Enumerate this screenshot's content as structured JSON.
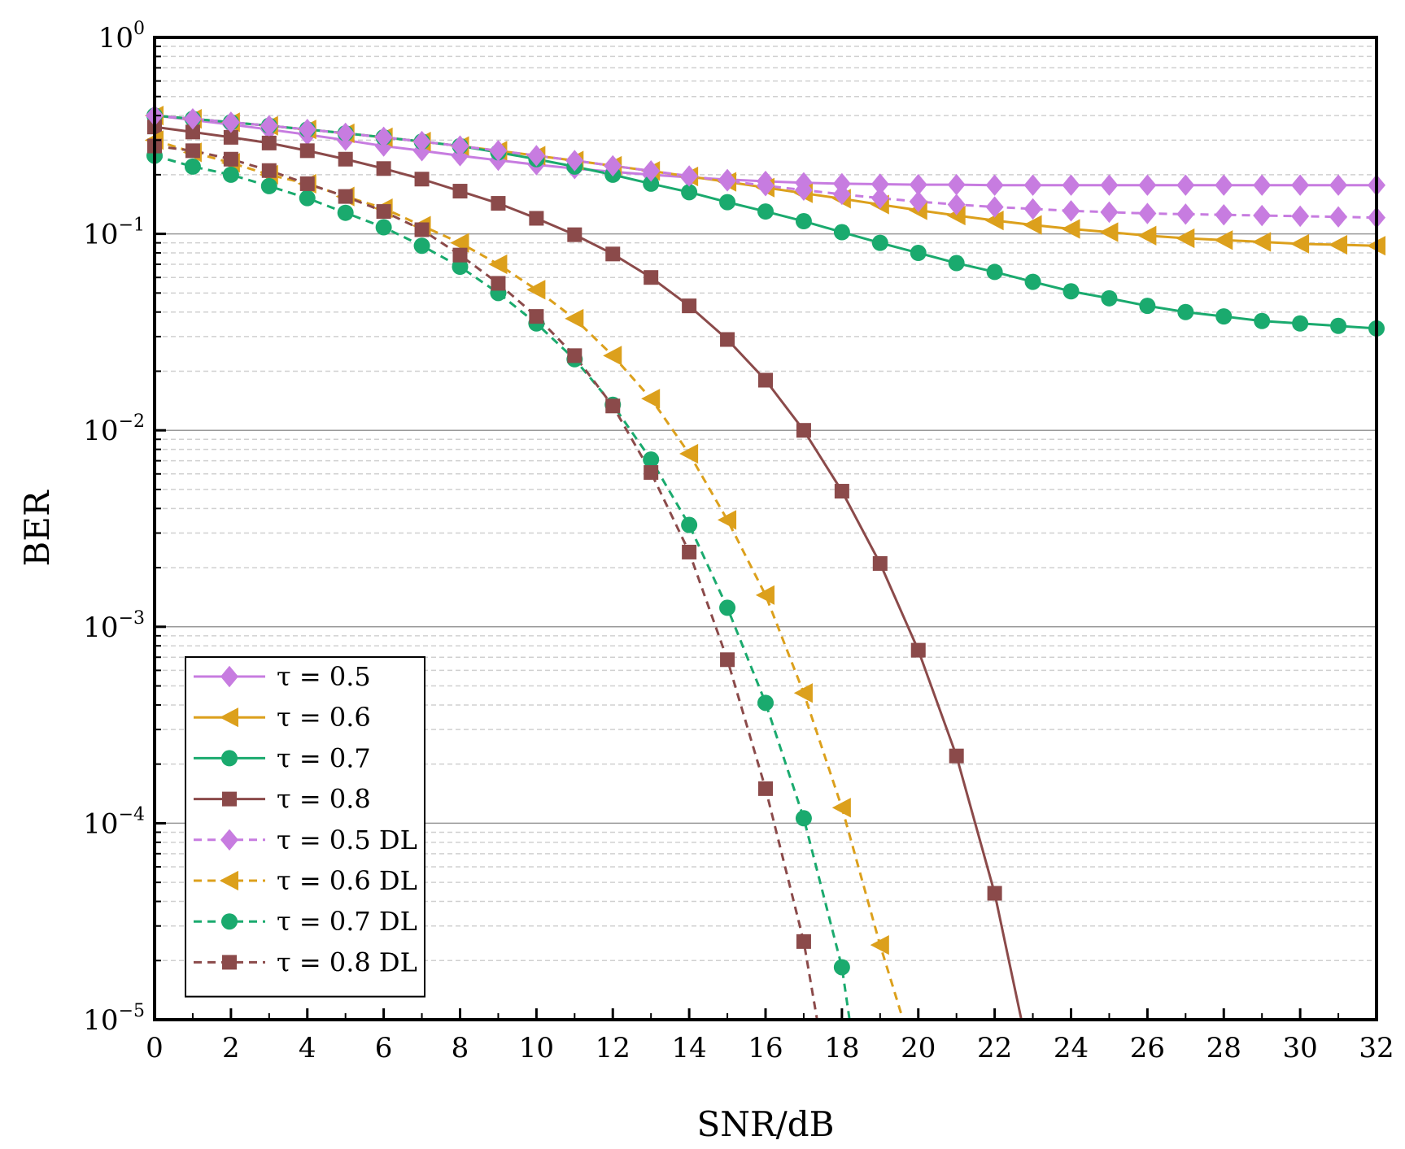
{
  "chart_data": {
    "type": "line",
    "title": "",
    "xlabel": "SNR/dB",
    "ylabel": "BER",
    "xlim": [
      0,
      32
    ],
    "ylim": [
      1e-05,
      1
    ],
    "yscale": "log",
    "x_ticks": [
      0,
      2,
      4,
      6,
      8,
      10,
      12,
      14,
      16,
      18,
      20,
      22,
      24,
      26,
      28,
      30,
      32
    ],
    "y_ticks": [
      {
        "value": 1,
        "base": "10",
        "exp": "0"
      },
      {
        "value": 0.1,
        "base": "10",
        "exp": "−1"
      },
      {
        "value": 0.01,
        "base": "10",
        "exp": "−2"
      },
      {
        "value": 0.001,
        "base": "10",
        "exp": "−3"
      },
      {
        "value": 0.0001,
        "base": "10",
        "exp": "−4"
      },
      {
        "value": 1e-05,
        "base": "10",
        "exp": "−5"
      }
    ],
    "grid": true,
    "legend_position": "bottom-left",
    "colors": {
      "tau05": "#c77ce0",
      "tau06": "#dca01c",
      "tau07": "#1aaa6e",
      "tau08": "#8b4a4a",
      "grid_major": "#999999",
      "grid_minor": "#d0d0d0"
    },
    "series": [
      {
        "name": "τ = 0.5",
        "color": "#c77ce0",
        "marker": "diamond",
        "dashed": false,
        "x": [
          0,
          1,
          2,
          3,
          4,
          5,
          6,
          7,
          8,
          9,
          10,
          11,
          12,
          13,
          14,
          15,
          16,
          17,
          18,
          19,
          20,
          21,
          22,
          23,
          24,
          25,
          26,
          27,
          28,
          29,
          30,
          31,
          32
        ],
        "y": [
          0.4,
          0.38,
          0.36,
          0.34,
          0.32,
          0.3,
          0.28,
          0.265,
          0.25,
          0.237,
          0.225,
          0.215,
          0.207,
          0.2,
          0.194,
          0.189,
          0.185,
          0.182,
          0.18,
          0.179,
          0.178,
          0.178,
          0.177,
          0.177,
          0.177,
          0.177,
          0.177,
          0.177,
          0.177,
          0.177,
          0.177,
          0.177,
          0.177
        ]
      },
      {
        "name": "τ = 0.6",
        "color": "#dca01c",
        "marker": "triangle-left",
        "dashed": false,
        "x": [
          0,
          1,
          2,
          3,
          4,
          5,
          6,
          7,
          8,
          9,
          10,
          11,
          12,
          13,
          14,
          15,
          16,
          17,
          18,
          19,
          20,
          21,
          22,
          23,
          24,
          25,
          26,
          27,
          28,
          29,
          30,
          31,
          32
        ],
        "y": [
          0.4,
          0.385,
          0.37,
          0.355,
          0.34,
          0.325,
          0.31,
          0.295,
          0.28,
          0.265,
          0.25,
          0.236,
          0.222,
          0.209,
          0.196,
          0.184,
          0.172,
          0.161,
          0.151,
          0.141,
          0.132,
          0.124,
          0.117,
          0.111,
          0.106,
          0.102,
          0.098,
          0.095,
          0.093,
          0.091,
          0.089,
          0.088,
          0.087
        ]
      },
      {
        "name": "τ = 0.7",
        "color": "#1aaa6e",
        "marker": "circle",
        "dashed": false,
        "x": [
          0,
          1,
          2,
          3,
          4,
          5,
          6,
          7,
          8,
          9,
          10,
          11,
          12,
          13,
          14,
          15,
          16,
          17,
          18,
          19,
          20,
          21,
          22,
          23,
          24,
          25,
          26,
          27,
          28,
          29,
          30,
          31,
          32
        ],
        "y": [
          0.4,
          0.385,
          0.37,
          0.355,
          0.34,
          0.325,
          0.31,
          0.295,
          0.28,
          0.26,
          0.24,
          0.22,
          0.2,
          0.18,
          0.163,
          0.145,
          0.13,
          0.116,
          0.102,
          0.09,
          0.08,
          0.071,
          0.064,
          0.057,
          0.051,
          0.047,
          0.043,
          0.04,
          0.038,
          0.036,
          0.035,
          0.034,
          0.033
        ]
      },
      {
        "name": "τ = 0.8",
        "color": "#8b4a4a",
        "marker": "square",
        "dashed": false,
        "x": [
          0,
          1,
          2,
          3,
          4,
          5,
          6,
          7,
          8,
          9,
          10,
          11,
          12,
          13,
          14,
          15,
          16,
          17,
          18,
          19,
          20,
          21,
          22,
          22.7
        ],
        "y": [
          0.35,
          0.33,
          0.31,
          0.29,
          0.265,
          0.24,
          0.215,
          0.19,
          0.165,
          0.143,
          0.12,
          0.099,
          0.079,
          0.06,
          0.043,
          0.029,
          0.018,
          0.01,
          0.0049,
          0.0021,
          0.00076,
          0.00022,
          4.4e-05,
          1e-05
        ]
      },
      {
        "name": "τ = 0.5 DL",
        "color": "#c77ce0",
        "marker": "diamond",
        "dashed": true,
        "x": [
          0,
          1,
          2,
          3,
          4,
          5,
          6,
          7,
          8,
          9,
          10,
          11,
          12,
          13,
          14,
          15,
          16,
          17,
          18,
          19,
          20,
          21,
          22,
          23,
          24,
          25,
          26,
          27,
          28,
          29,
          30,
          31,
          32
        ],
        "y": [
          0.4,
          0.385,
          0.37,
          0.355,
          0.34,
          0.325,
          0.31,
          0.295,
          0.28,
          0.265,
          0.25,
          0.236,
          0.222,
          0.209,
          0.197,
          0.186,
          0.176,
          0.167,
          0.159,
          0.152,
          0.146,
          0.141,
          0.137,
          0.134,
          0.131,
          0.129,
          0.127,
          0.126,
          0.125,
          0.124,
          0.123,
          0.122,
          0.121
        ]
      },
      {
        "name": "τ = 0.6 DL",
        "color": "#dca01c",
        "marker": "triangle-left",
        "dashed": true,
        "x": [
          0,
          1,
          2,
          3,
          4,
          5,
          6,
          7,
          8,
          9,
          10,
          11,
          12,
          13,
          14,
          15,
          16,
          17,
          18,
          19,
          19.6
        ],
        "y": [
          0.3,
          0.26,
          0.23,
          0.2,
          0.18,
          0.155,
          0.135,
          0.11,
          0.09,
          0.07,
          0.052,
          0.037,
          0.024,
          0.0145,
          0.0076,
          0.0035,
          0.00145,
          0.00046,
          0.00012,
          2.4e-05,
          1e-05
        ]
      },
      {
        "name": "τ = 0.7 DL",
        "color": "#1aaa6e",
        "marker": "circle",
        "dashed": true,
        "x": [
          0,
          1,
          2,
          3,
          4,
          5,
          6,
          7,
          8,
          9,
          10,
          11,
          12,
          13,
          14,
          15,
          16,
          17,
          18,
          18.2
        ],
        "y": [
          0.25,
          0.22,
          0.2,
          0.175,
          0.152,
          0.128,
          0.108,
          0.087,
          0.068,
          0.05,
          0.035,
          0.023,
          0.0135,
          0.0071,
          0.0033,
          0.00125,
          0.00041,
          0.000106,
          1.85e-05,
          1e-05
        ]
      },
      {
        "name": "τ = 0.8 DL",
        "color": "#8b4a4a",
        "marker": "square",
        "dashed": true,
        "x": [
          0,
          1,
          2,
          3,
          4,
          5,
          6,
          7,
          8,
          9,
          10,
          11,
          12,
          13,
          14,
          15,
          16,
          17,
          17.35
        ],
        "y": [
          0.28,
          0.265,
          0.24,
          0.21,
          0.18,
          0.155,
          0.13,
          0.105,
          0.078,
          0.056,
          0.038,
          0.024,
          0.0133,
          0.0061,
          0.0024,
          0.00068,
          0.00015,
          2.5e-05,
          1e-05
        ]
      }
    ]
  }
}
